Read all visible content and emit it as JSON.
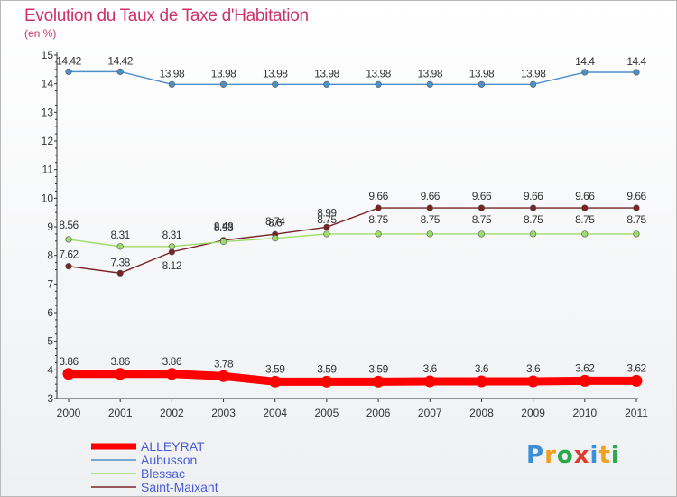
{
  "chart_data": {
    "type": "line",
    "title": "Evolution du Taux de Taxe d'Habitation",
    "subtitle": "(en %)",
    "x": [
      "2000",
      "2001",
      "2002",
      "2003",
      "2004",
      "2005",
      "2006",
      "2007",
      "2008",
      "2009",
      "2010",
      "2011"
    ],
    "ylim": [
      3,
      15
    ],
    "yticks": [
      3,
      4,
      5,
      6,
      7,
      8,
      9,
      10,
      11,
      12,
      13,
      14,
      15
    ],
    "grid": false,
    "legend_position": "bottom-left",
    "series": [
      {
        "name": "ALLEYRAT",
        "color": "#ff0000",
        "values": [
          3.86,
          3.86,
          3.86,
          3.78,
          3.59,
          3.59,
          3.59,
          3.6,
          3.6,
          3.6,
          3.62,
          3.62
        ],
        "labels": [
          "3.86",
          "3.86",
          "3.86",
          "3.78",
          "3.59",
          "3.59",
          "3.59",
          "3.6",
          "3.6",
          "3.6",
          "3.62",
          "3.62"
        ]
      },
      {
        "name": "Aubusson",
        "color": "#4f8fc8",
        "values": [
          14.42,
          14.42,
          13.98,
          13.98,
          13.98,
          13.98,
          13.98,
          13.98,
          13.98,
          13.98,
          14.4,
          14.4
        ],
        "labels": [
          "14.42",
          "14.42",
          "13.98",
          "13.98",
          "13.98",
          "13.98",
          "13.98",
          "13.98",
          "13.98",
          "13.98",
          "14.4",
          "14.4"
        ]
      },
      {
        "name": "Blessac",
        "color": "#9edc6a",
        "values": [
          8.56,
          8.31,
          8.31,
          8.48,
          8.6,
          8.75,
          8.75,
          8.75,
          8.75,
          8.75,
          8.75,
          8.75
        ],
        "labels": [
          "8.56",
          "8.31",
          "8.31",
          "8.48",
          "8.6",
          "8.75",
          "8.75",
          "8.75",
          "8.75",
          "8.75",
          "8.75",
          "8.75"
        ]
      },
      {
        "name": "Saint-Maixant",
        "color": "#7a2326",
        "values": [
          7.62,
          7.38,
          8.12,
          8.53,
          8.74,
          8.99,
          9.66,
          9.66,
          9.66,
          9.66,
          9.66,
          9.66
        ],
        "labels": [
          "7.62",
          "7.38",
          "8.12",
          "8.53",
          "8.74",
          "8.99",
          "9.66",
          "9.66",
          "9.66",
          "9.66",
          "9.66",
          "9.66"
        ]
      }
    ]
  },
  "brand": {
    "letters": [
      {
        "ch": "P",
        "color": "#3a8fd6"
      },
      {
        "ch": "r",
        "color": "#f0a020"
      },
      {
        "ch": "o",
        "color": "#2aa84a"
      },
      {
        "ch": "x",
        "color": "#e03a2a"
      },
      {
        "ch": "i",
        "color": "#3a8fd6"
      },
      {
        "ch": "t",
        "color": "#f0a020"
      },
      {
        "ch": "i",
        "color": "#2aa84a"
      }
    ]
  }
}
